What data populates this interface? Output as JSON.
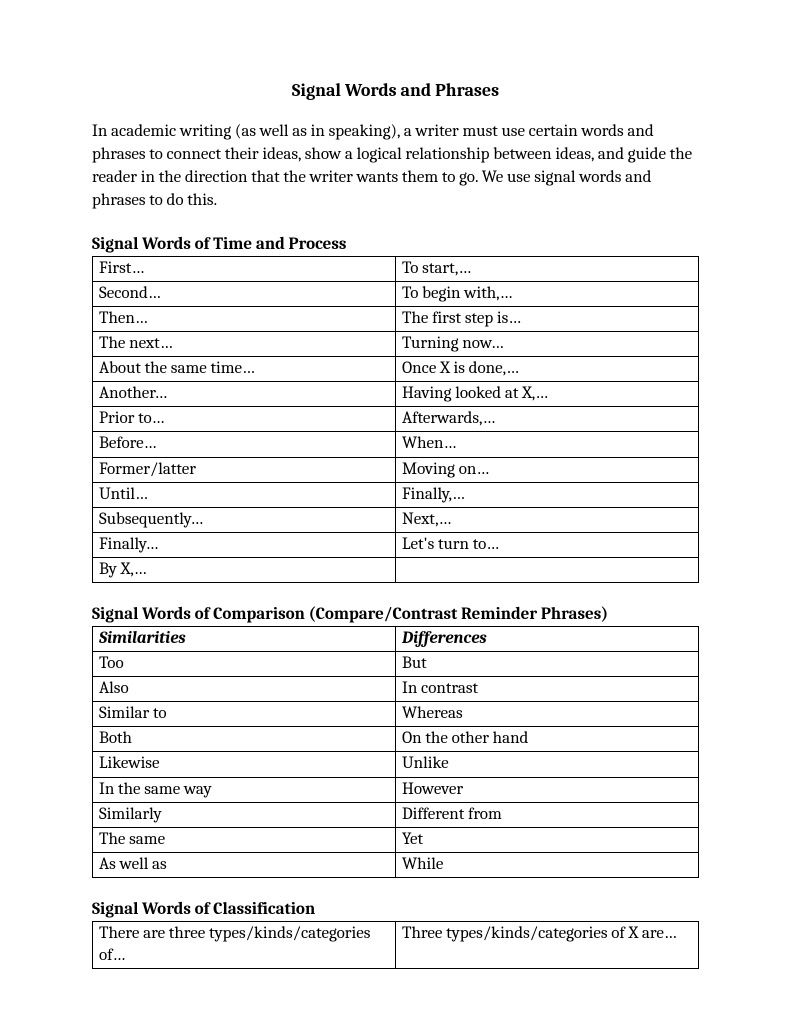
{
  "title": "Signal Words and Phrases",
  "intro": "In academic writing (as well as in speaking), a writer must use certain words and phrases to connect their ideas, show a logical relationship between ideas, and guide the reader in the direction that the writer wants them to go.  We use signal words and phrases to do this.",
  "sections": {
    "time_process": {
      "heading": "Signal Words of Time and Process",
      "rows": [
        [
          "First…",
          "To start,…"
        ],
        [
          "Second…",
          "To begin with,…"
        ],
        [
          "Then…",
          "The first step is…"
        ],
        [
          "The next…",
          "Turning now…"
        ],
        [
          "About the same time…",
          "Once X is done,…"
        ],
        [
          "Another…",
          "Having looked at X,…"
        ],
        [
          "Prior to…",
          "Afterwards,…"
        ],
        [
          "Before…",
          "When…"
        ],
        [
          "Former/latter",
          "Moving on…"
        ],
        [
          "Until…",
          "Finally,…"
        ],
        [
          "Subsequently…",
          "Next,…"
        ],
        [
          "Finally…",
          "Let's turn to…"
        ],
        [
          "By X,…",
          ""
        ]
      ]
    },
    "comparison": {
      "heading": "Signal Words of Comparison (Compare/Contrast Reminder Phrases)",
      "col_headers": [
        "Similarities",
        "Differences"
      ],
      "rows": [
        [
          "Too",
          "But"
        ],
        [
          "Also",
          "In contrast"
        ],
        [
          "Similar to",
          "Whereas"
        ],
        [
          "Both",
          "On the other hand"
        ],
        [
          "Likewise",
          "Unlike"
        ],
        [
          "In the same way",
          "However"
        ],
        [
          "Similarly",
          "Different from"
        ],
        [
          "The same",
          "Yet"
        ],
        [
          "As well as",
          "While"
        ]
      ]
    },
    "classification": {
      "heading": "Signal Words of Classification",
      "rows": [
        [
          "There are three types/kinds/categories of…",
          "Three types/kinds/categories of X are…"
        ]
      ]
    }
  }
}
